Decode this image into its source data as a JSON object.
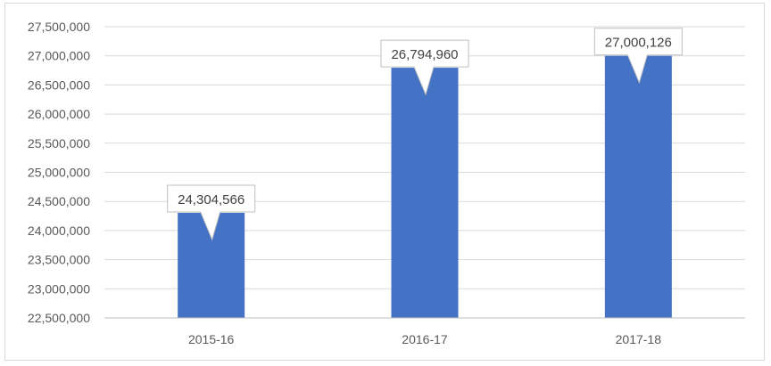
{
  "chart_data": {
    "type": "bar",
    "title": "",
    "xlabel": "",
    "ylabel": "",
    "categories": [
      "2015-16",
      "2016-17",
      "2017-18"
    ],
    "values": [
      24304566,
      26794960,
      27000126
    ],
    "data_labels": [
      "24,304,566",
      "26,794,960",
      "27,000,126"
    ],
    "ylim": [
      22500000,
      27500000
    ],
    "y_ticks": [
      22500000,
      23000000,
      23500000,
      24000000,
      24500000,
      25000000,
      25500000,
      26000000,
      26500000,
      27000000,
      27500000
    ],
    "y_tick_labels": [
      "22,500,000",
      "23,000,000",
      "23,500,000",
      "24,000,000",
      "24,500,000",
      "25,000,000",
      "25,500,000",
      "26,000,000",
      "26,500,000",
      "27,000,000",
      "27,500,000"
    ],
    "grid": true,
    "legend": "none",
    "bar_color": "#4472C4",
    "grid_color": "#d9d9d9",
    "label_border_color": "#bfbfbf"
  }
}
